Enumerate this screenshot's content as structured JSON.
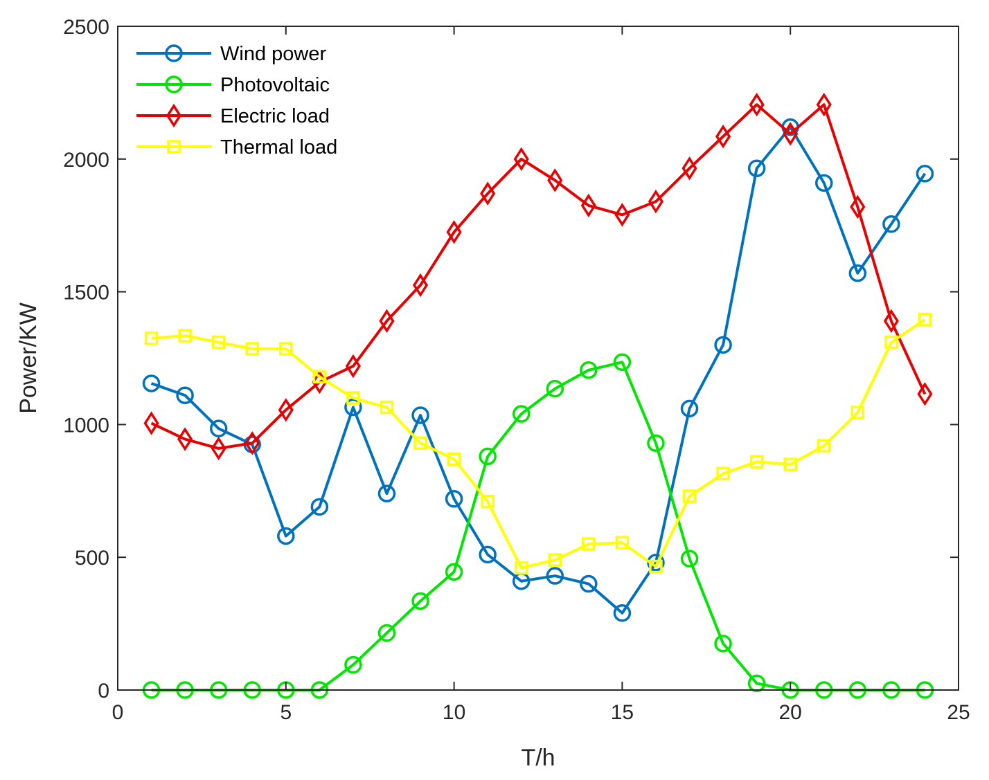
{
  "chart_data": {
    "type": "line",
    "title": "",
    "xlabel": "T/h",
    "ylabel": "Power/KW",
    "xlim": [
      0,
      25
    ],
    "ylim": [
      0,
      2500
    ],
    "xticks": [
      0,
      5,
      10,
      15,
      20,
      25
    ],
    "yticks": [
      0,
      500,
      1000,
      1500,
      2000,
      2500
    ],
    "grid": false,
    "legend_position": "top-left",
    "x": [
      1,
      2,
      3,
      4,
      5,
      6,
      7,
      8,
      9,
      10,
      11,
      12,
      13,
      14,
      15,
      16,
      17,
      18,
      19,
      20,
      21,
      22,
      23,
      24
    ],
    "series": [
      {
        "name": "Wind power",
        "color": "#0072bd",
        "marker": "circle",
        "values": [
          1155,
          1110,
          985,
          925,
          580,
          690,
          1065,
          740,
          1035,
          720,
          510,
          410,
          430,
          400,
          290,
          480,
          1060,
          1300,
          1965,
          2120,
          1910,
          1570,
          1755,
          1945
        ]
      },
      {
        "name": "Photovoltaic",
        "color": "#00e600",
        "marker": "circle",
        "values": [
          0,
          0,
          0,
          0,
          0,
          0,
          95,
          215,
          335,
          445,
          880,
          1040,
          1135,
          1205,
          1235,
          930,
          495,
          175,
          25,
          0,
          0,
          0,
          0,
          0
        ]
      },
      {
        "name": "Electric load",
        "color": "#e60000",
        "marker": "diamond",
        "values": [
          1005,
          945,
          910,
          930,
          1055,
          1160,
          1220,
          1390,
          1525,
          1725,
          1870,
          2000,
          1920,
          1825,
          1790,
          1840,
          1965,
          2085,
          2205,
          2095,
          2205,
          1820,
          1390,
          1115
        ]
      },
      {
        "name": "Thermal load",
        "color": "#ffff00",
        "marker": "square",
        "values": [
          1325,
          1335,
          1310,
          1285,
          1285,
          1180,
          1100,
          1065,
          930,
          870,
          710,
          460,
          490,
          550,
          555,
          465,
          730,
          815,
          860,
          850,
          920,
          1045,
          1310,
          1395
        ]
      }
    ]
  }
}
